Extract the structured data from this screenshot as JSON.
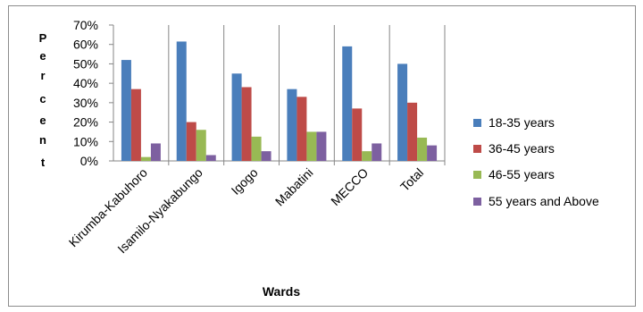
{
  "chart_data": {
    "type": "bar",
    "categories": [
      "Kirumba-Kabuhoro",
      "Isamilo-Nyakabungo",
      "Igogo",
      "Mabatini",
      "MECCO",
      "Total"
    ],
    "series": [
      {
        "name": "18-35 years",
        "color": "#4a7ebb",
        "values": [
          52,
          61.5,
          45,
          37,
          59,
          50
        ]
      },
      {
        "name": "36-45 years",
        "color": "#be4b48",
        "values": [
          37,
          20,
          38,
          33,
          27,
          30
        ]
      },
      {
        "name": "46-55 years",
        "color": "#98b954",
        "values": [
          2,
          16,
          12.5,
          15,
          5,
          12
        ]
      },
      {
        "name": "55 years and Above",
        "color": "#7d60a0",
        "values": [
          9,
          3,
          5,
          15,
          9,
          8
        ]
      }
    ],
    "ylabel": "Percent",
    "ylabel_letters": [
      "P",
      "e",
      "r",
      "c",
      "e",
      "n",
      "t"
    ],
    "xlabel": "Wards",
    "ylim": [
      0,
      70
    ],
    "yticks": [
      "0%",
      "10%",
      "20%",
      "30%",
      "40%",
      "50%",
      "60%",
      "70%"
    ],
    "grid": false,
    "legend_position": "right"
  }
}
